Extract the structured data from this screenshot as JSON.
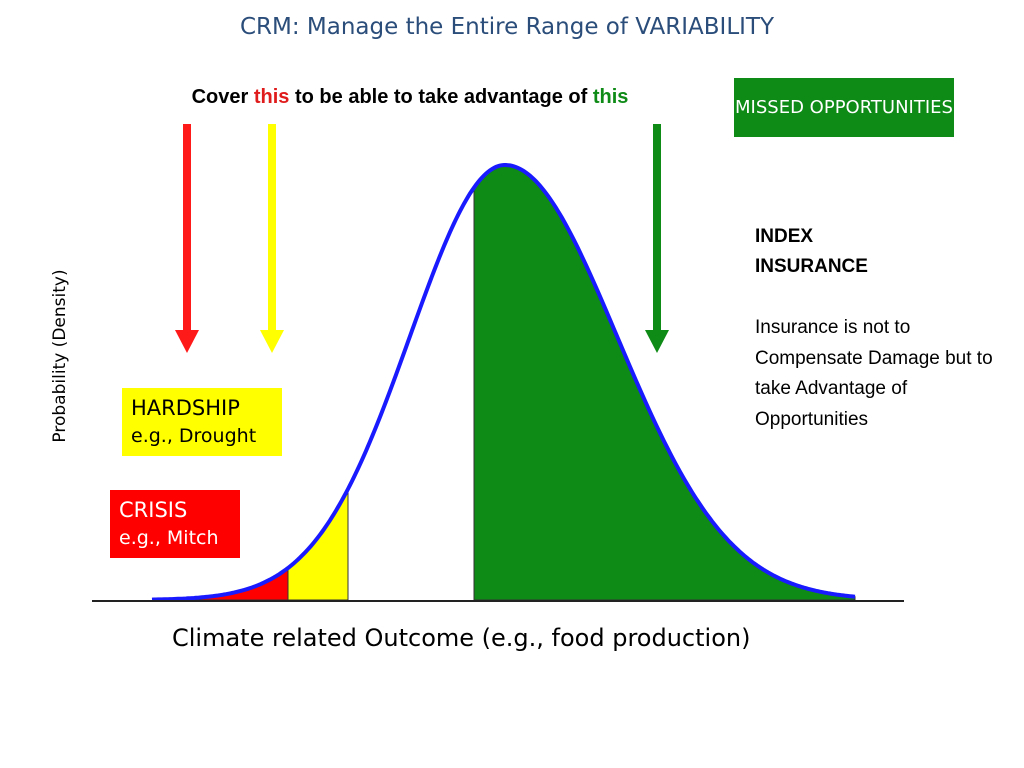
{
  "header": {
    "title": "CRM: Manage the Entire Range of VARIABILITY"
  },
  "callout": {
    "parts": [
      "Cover",
      "this",
      "to be able to take advantage of",
      "this"
    ]
  },
  "missed_box": {
    "label": "MISSED OPPORTUNITIES"
  },
  "index_insurance": {
    "heading": "INDEX INSURANCE",
    "body": "Insurance is not to Compensate Damage but to take Advantage of Opportunities"
  },
  "hardship": {
    "title": "HARDSHIP",
    "example": "e.g., Drought"
  },
  "crisis": {
    "title": "CRISIS",
    "example": "e.g., Mitch"
  },
  "axes": {
    "y_label": "Probability (Density)",
    "x_label": "Climate related Outcome (e.g., food production)"
  }
}
